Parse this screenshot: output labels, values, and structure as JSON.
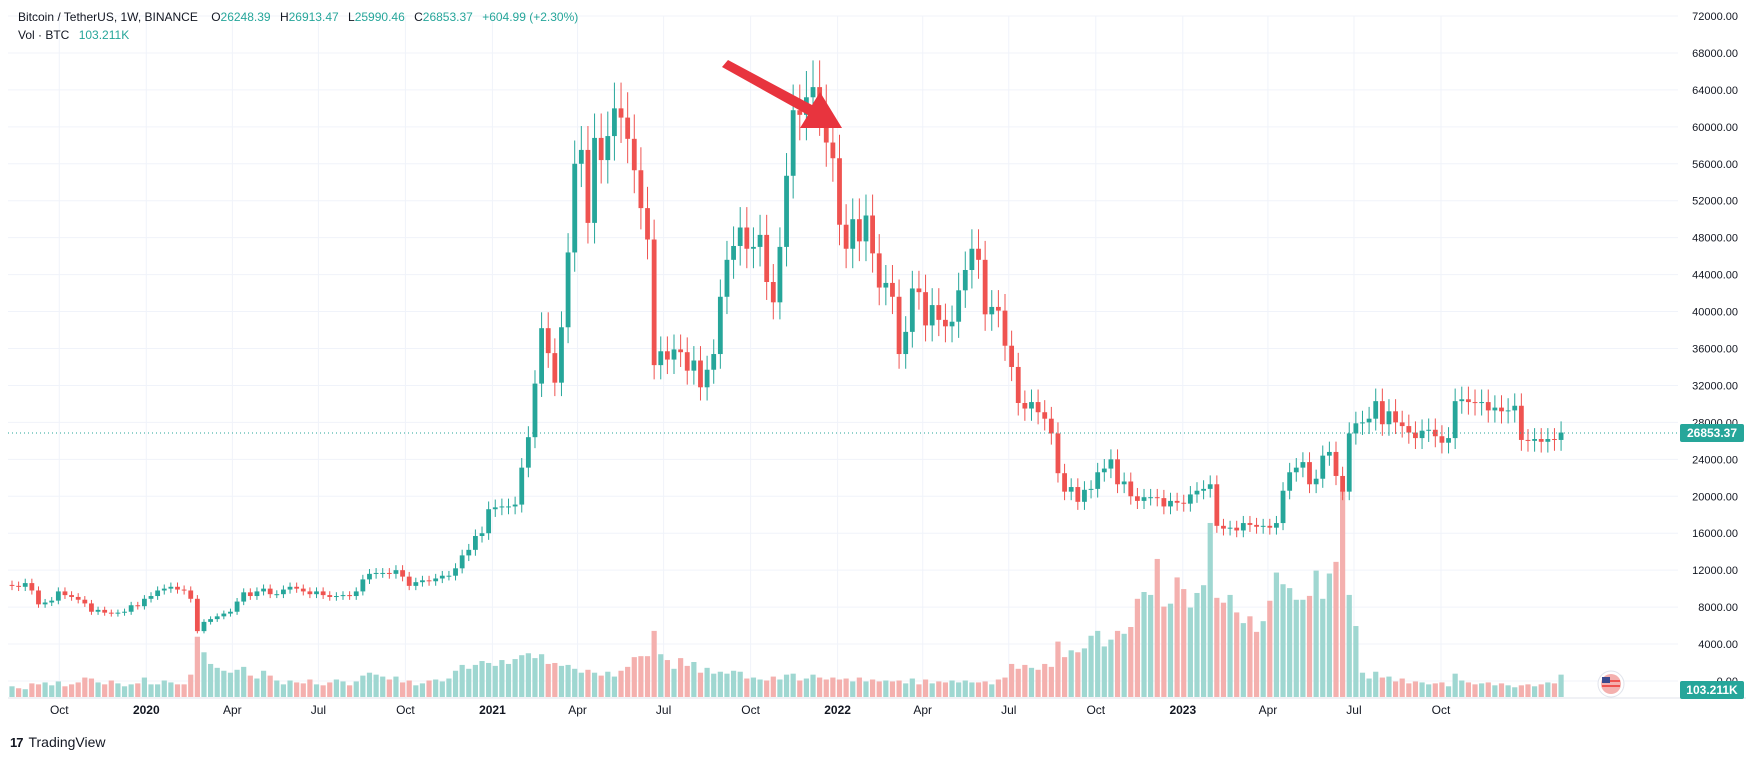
{
  "legend": {
    "symbol": "Bitcoin / TetherUS, 1W, BINANCE",
    "open_label": "O",
    "open": "26248.39",
    "high_label": "H",
    "high": "26913.47",
    "low_label": "L",
    "low": "25990.46",
    "close_label": "C",
    "close": "26853.37",
    "change": "+604.99 (+2.30%)",
    "vol_label": "Vol · BTC",
    "vol_value": "103.211K"
  },
  "price_badge": "26853.37",
  "volume_badge": "103.211K",
  "brand": "TradingView",
  "brand_mark": "17",
  "colors": {
    "up": "#26a69a",
    "down": "#ef5350",
    "up_vol": "#9fd7d1",
    "down_vol": "#f4b0ae",
    "arrow": "#e8343e",
    "grid": "#f0f3fa",
    "axis_text": "#131722"
  },
  "chart_data": {
    "type": "candlestick",
    "interval": "1W",
    "y_range": [
      0,
      72000
    ],
    "last_price": 26853.37,
    "y_ticks": [
      "72000.00",
      "68000.00",
      "64000.00",
      "60000.00",
      "56000.00",
      "52000.00",
      "48000.00",
      "44000.00",
      "40000.00",
      "36000.00",
      "32000.00",
      "28000.00",
      "24000.00",
      "20000.00",
      "16000.00",
      "12000.00",
      "8000.00",
      "4000.00",
      "0.00"
    ],
    "x_ticks": [
      {
        "label": "Oct",
        "bold": false,
        "date": "2019-10-01"
      },
      {
        "label": "2020",
        "bold": true,
        "date": "2020-01-01"
      },
      {
        "label": "Apr",
        "bold": false,
        "date": "2020-04-01"
      },
      {
        "label": "Jul",
        "bold": false,
        "date": "2020-07-01"
      },
      {
        "label": "Oct",
        "bold": false,
        "date": "2020-10-01"
      },
      {
        "label": "2021",
        "bold": true,
        "date": "2021-01-01"
      },
      {
        "label": "Apr",
        "bold": false,
        "date": "2021-04-01"
      },
      {
        "label": "Jul",
        "bold": false,
        "date": "2021-07-01"
      },
      {
        "label": "Oct",
        "bold": false,
        "date": "2021-10-01"
      },
      {
        "label": "2022",
        "bold": true,
        "date": "2022-01-01"
      },
      {
        "label": "Apr",
        "bold": false,
        "date": "2022-04-01"
      },
      {
        "label": "Jul",
        "bold": false,
        "date": "2022-07-01"
      },
      {
        "label": "Oct",
        "bold": false,
        "date": "2022-10-01"
      },
      {
        "label": "2023",
        "bold": true,
        "date": "2023-01-01"
      },
      {
        "label": "Apr",
        "bold": false,
        "date": "2023-04-01"
      },
      {
        "label": "Jul",
        "bold": false,
        "date": "2023-07-01"
      },
      {
        "label": "Oct",
        "bold": false,
        "date": "2023-10-01"
      }
    ],
    "closes": [
      10300,
      10200,
      10600,
      9800,
      8300,
      8500,
      8700,
      9700,
      9300,
      9100,
      8800,
      8400,
      7500,
      7700,
      7400,
      7300,
      7400,
      7500,
      8200,
      8100,
      8900,
      9200,
      9800,
      10000,
      10200,
      9900,
      9800,
      8900,
      5400,
      6400,
      6700,
      7000,
      7300,
      7500,
      8600,
      9600,
      9200,
      9700,
      10000,
      9400,
      9400,
      9900,
      10200,
      10000,
      9700,
      9400,
      9700,
      9300,
      9100,
      9200,
      9300,
      9200,
      9700,
      11000,
      11600,
      11700,
      11700,
      11600,
      12000,
      11300,
      10300,
      10700,
      10900,
      10800,
      11100,
      11400,
      11400,
      12200,
      13600,
      14200,
      15700,
      16000,
      18600,
      18800,
      18900,
      18900,
      19100,
      23100,
      26400,
      32200,
      38200,
      35500,
      32300,
      38300,
      46400,
      56000,
      57500,
      49600,
      58800,
      56400,
      59000,
      62000,
      61000,
      58700,
      55300,
      51200,
      47800,
      34200,
      35700,
      34800,
      35900,
      35600,
      33600,
      34700,
      31800,
      33700,
      35400,
      41600,
      45600,
      47100,
      49100,
      46800,
      47000,
      48300,
      43200,
      41000,
      47000,
      54700,
      61800,
      61300,
      63200,
      64300,
      61800,
      58300,
      56600,
      49400,
      46800,
      50000,
      47600,
      50400,
      46300,
      42600,
      43100,
      41600,
      35400,
      37800,
      42500,
      42100,
      38500,
      40700,
      39100,
      38400,
      38900,
      42300,
      44500,
      46800,
      45600,
      39700,
      40500,
      40100,
      36300,
      34000,
      30100,
      29500,
      30200,
      29100,
      28400,
      26800,
      22500,
      20500,
      21000,
      19400,
      20700,
      20800,
      22600,
      23000,
      24000,
      21300,
      21600,
      20000,
      19500,
      19900,
      19900,
      19800,
      18900,
      19500,
      19300,
      19200,
      20200,
      20600,
      20800,
      21300,
      16800,
      16500,
      16600,
      16300,
      17100,
      16900,
      16700,
      16800,
      16600,
      17100,
      20600,
      22600,
      23100,
      23700,
      21300,
      21900,
      24400,
      24800,
      22200,
      20500,
      26800,
      27900,
      28000,
      28400,
      30300,
      27800,
      29200,
      28000,
      27600,
      26900,
      26300,
      27100,
      27200,
      26500,
      25800,
      26300,
      30300,
      30500,
      30200,
      30100,
      30200,
      29300,
      29600,
      29200,
      29300,
      29800,
      26100,
      26000,
      26200,
      25900,
      26200,
      26100,
      26900
    ],
    "volume_max": 18000,
    "volumes": [
      1100,
      900,
      800,
      1400,
      1300,
      1500,
      1200,
      1600,
      1100,
      1300,
      1500,
      2000,
      1900,
      1500,
      1300,
      1700,
      1400,
      1100,
      1300,
      1400,
      2000,
      1300,
      1300,
      1700,
      1500,
      1300,
      1300,
      2300,
      6200,
      4600,
      3400,
      3000,
      2700,
      2500,
      2800,
      3100,
      2200,
      1900,
      2700,
      2200,
      1700,
      1300,
      1700,
      1500,
      1400,
      1800,
      1300,
      1200,
      1500,
      1800,
      1600,
      1200,
      1600,
      2200,
      2500,
      2300,
      2100,
      1800,
      2100,
      1500,
      1700,
      1200,
      1400,
      1700,
      1800,
      1600,
      1900,
      2700,
      3300,
      2900,
      3300,
      3700,
      3500,
      3200,
      3800,
      3400,
      3900,
      4300,
      4500,
      4000,
      4400,
      3400,
      3500,
      3200,
      3300,
      2900,
      2500,
      2800,
      2500,
      2200,
      2600,
      2100,
      2700,
      3100,
      4100,
      4200,
      4200,
      6800,
      4400,
      3800,
      2900,
      4000,
      3200,
      3600,
      2500,
      3000,
      2400,
      2600,
      2400,
      2700,
      2600,
      1900,
      2000,
      1800,
      1700,
      2100,
      1800,
      2300,
      2400,
      1700,
      1900,
      2300,
      2000,
      1800,
      2000,
      1800,
      1900,
      1600,
      2000,
      1600,
      1800,
      1600,
      1700,
      1600,
      1700,
      1400,
      1900,
      1300,
      1800,
      1400,
      1600,
      1500,
      1700,
      1500,
      1700,
      1500,
      1500,
      1600,
      1300,
      1800,
      2000,
      3400,
      2900,
      3300,
      3000,
      2800,
      3400,
      3100,
      5700,
      4100,
      4800,
      4600,
      5000,
      6300,
      6800,
      5200,
      5900,
      6800,
      6500,
      7200,
      10100,
      10800,
      10500,
      14200,
      9300,
      9600,
      12300,
      11100,
      9200,
      10700,
      11500,
      17900,
      10200,
      9700,
      10500,
      8700,
      7600,
      8300,
      6700,
      7800,
      9900,
      12800,
      11600,
      11200,
      10000,
      10000,
      10400,
      13000,
      10100,
      12700,
      13900,
      21300,
      10500,
      7300,
      2500,
      1900,
      2600,
      2000,
      2100,
      1600,
      1900,
      1400,
      1600,
      1500,
      1300,
      1400,
      1500,
      1100,
      2400,
      1700,
      1500,
      1300,
      1400,
      1500,
      1200,
      1400,
      1200,
      1000,
      1200,
      1300,
      1100,
      1300,
      1500,
      1400,
      2300
    ]
  }
}
